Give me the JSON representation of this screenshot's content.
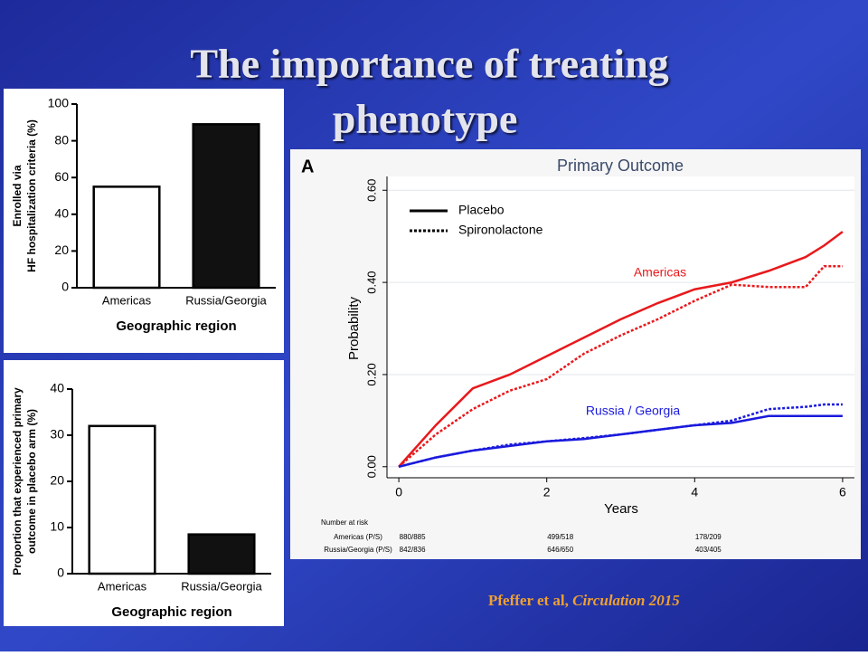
{
  "title": [
    "The importance of treating",
    "phenotype"
  ],
  "citation": {
    "authors": "Pfeffer et al,",
    "journal": "Circulation 2015"
  },
  "chart_data": [
    {
      "type": "bar",
      "ylabel": [
        "Enrolled via",
        "HF hospitalization criteria (%)"
      ],
      "xlabel": "Geographic region",
      "categories": [
        "Americas",
        "Russia/Georgia"
      ],
      "values": [
        55,
        89
      ],
      "colors": [
        "#ffffff",
        "#111111"
      ],
      "ylim": [
        0,
        100
      ],
      "yticks": [
        0,
        20,
        40,
        60,
        80,
        100
      ]
    },
    {
      "type": "bar",
      "ylabel": [
        "Proportion that experienced primary",
        "outcome in placebo arm (%)"
      ],
      "xlabel": "Geographic region",
      "categories": [
        "Americas",
        "Russia/Georgia"
      ],
      "values": [
        32,
        8.5
      ],
      "colors": [
        "#ffffff",
        "#111111"
      ],
      "ylim": [
        0,
        40
      ],
      "yticks": [
        0,
        10,
        20,
        30,
        40
      ]
    },
    {
      "type": "line",
      "panel": "A",
      "title": "Primary Outcome",
      "xlabel": "Years",
      "ylabel": "Probability",
      "x": [
        0,
        0.5,
        1,
        1.5,
        2,
        2.5,
        3,
        3.5,
        4,
        4.5,
        5,
        5.5,
        5.75,
        6
      ],
      "series": [
        {
          "color": "#e8191c",
          "dash": "solid",
          "values": [
            0,
            0.09,
            0.17,
            0.2,
            0.24,
            0.28,
            0.32,
            0.355,
            0.385,
            0.4,
            0.425,
            0.455,
            0.48,
            0.51
          ]
        },
        {
          "color": "#e8191c",
          "dash": "dotted",
          "values": [
            0,
            0.07,
            0.125,
            0.165,
            0.19,
            0.245,
            0.285,
            0.32,
            0.36,
            0.395,
            0.39,
            0.39,
            0.435,
            0.435
          ]
        },
        {
          "color": "#1a1adc",
          "dash": "solid",
          "values": [
            0,
            0.02,
            0.035,
            0.045,
            0.055,
            0.06,
            0.07,
            0.08,
            0.09,
            0.095,
            0.11,
            0.11,
            0.11,
            0.11
          ]
        },
        {
          "color": "#1a1adc",
          "dash": "dotted",
          "values": [
            0,
            0.02,
            0.035,
            0.048,
            0.055,
            0.062,
            0.07,
            0.08,
            0.09,
            0.1,
            0.125,
            0.13,
            0.135,
            0.135
          ]
        }
      ],
      "annotations": [
        "Americas",
        "Russia / Georgia"
      ],
      "legend": [
        {
          "label": "Placebo",
          "dash": "solid"
        },
        {
          "label": "Spironolactone",
          "dash": "dotted"
        }
      ],
      "xlim": [
        -0.16,
        6.16
      ],
      "ylim": [
        -0.024,
        0.63
      ],
      "xticks": [
        0,
        2,
        4,
        6
      ],
      "yticks": [
        {
          "value": 0,
          "label": "0.00"
        },
        {
          "value": 0.2,
          "label": "0.20"
        },
        {
          "value": 0.4,
          "label": "0.40"
        },
        {
          "value": 0.6,
          "label": "0.60"
        }
      ],
      "grid": true,
      "risk_table": {
        "title": "Number at risk",
        "x": [
          0,
          2,
          4
        ],
        "rows": [
          {
            "label": "Americas (P/S)",
            "counts": [
              "880/885",
              "499/518",
              "178/209"
            ]
          },
          {
            "label": "Russia/Georgia (P/S)",
            "counts": [
              "842/836",
              "646/650",
              "403/405"
            ]
          }
        ]
      }
    }
  ]
}
